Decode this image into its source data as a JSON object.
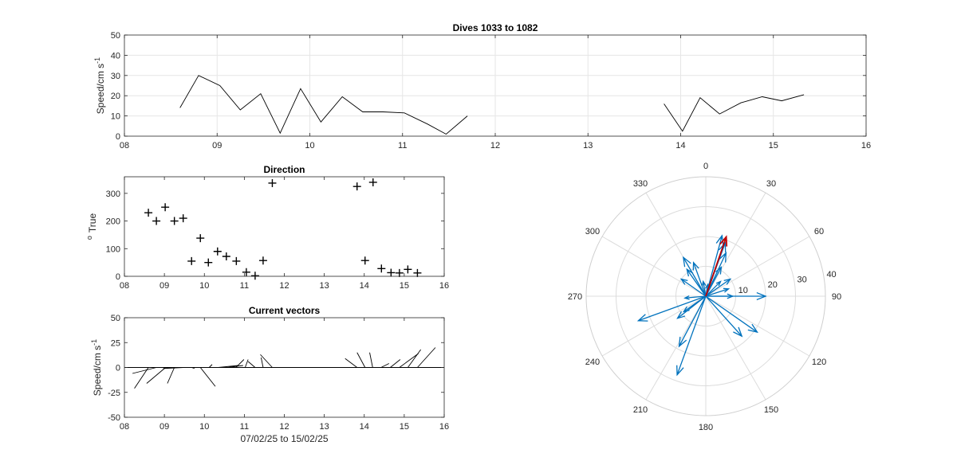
{
  "chart_data": [
    {
      "type": "line",
      "title": "Dives 1033 to 1082",
      "xlabel": "",
      "ylabel_main": "Speed/cm s",
      "ylabel_sup": "-1",
      "xlim": [
        8,
        16
      ],
      "ylim": [
        0,
        50
      ],
      "xticks": [
        8,
        9,
        10,
        11,
        12,
        13,
        14,
        15,
        16
      ],
      "xticklabels": [
        "08",
        "09",
        "10",
        "11",
        "12",
        "13",
        "14",
        "15",
        "16"
      ],
      "yticks": [
        0,
        10,
        20,
        30,
        40,
        50
      ],
      "yticklabels": [
        "0",
        "10",
        "20",
        "30",
        "40",
        "50"
      ],
      "grid": true,
      "color": "#000000",
      "segments": [
        [
          [
            8.6,
            14
          ],
          [
            8.8,
            30
          ],
          [
            9.03,
            25
          ],
          [
            9.25,
            13
          ],
          [
            9.47,
            21
          ],
          [
            9.68,
            1.5
          ],
          [
            9.9,
            23.5
          ],
          [
            10.12,
            7
          ],
          [
            10.35,
            19.5
          ],
          [
            10.57,
            12
          ],
          [
            10.79,
            12
          ],
          [
            11.02,
            11.5
          ],
          [
            11.27,
            6
          ],
          [
            11.47,
            1
          ],
          [
            11.7,
            10
          ]
        ],
        [
          [
            13.82,
            16
          ],
          [
            14.02,
            2.5
          ],
          [
            14.21,
            19
          ],
          [
            14.42,
            11
          ],
          [
            14.65,
            16.5
          ],
          [
            14.88,
            19.5
          ],
          [
            15.09,
            17.5
          ],
          [
            15.33,
            20.5
          ]
        ]
      ]
    },
    {
      "type": "scatter",
      "title": "Direction",
      "xlabel": "",
      "ylabel_main": "True",
      "ylabel_sup": "o",
      "marker": "+",
      "xlim": [
        8,
        16
      ],
      "ylim": [
        0,
        360
      ],
      "xticks": [
        8,
        9,
        10,
        11,
        12,
        13,
        14,
        15,
        16
      ],
      "xticklabels": [
        "08",
        "09",
        "10",
        "11",
        "12",
        "13",
        "14",
        "15",
        "16"
      ],
      "yticks": [
        0,
        100,
        200,
        300
      ],
      "yticklabels": [
        "0",
        "100",
        "200",
        "300"
      ],
      "grid": false,
      "points": [
        [
          8.6,
          230
        ],
        [
          8.8,
          200
        ],
        [
          9.02,
          250
        ],
        [
          9.25,
          200
        ],
        [
          9.47,
          210
        ],
        [
          9.68,
          55
        ],
        [
          9.9,
          138
        ],
        [
          10.1,
          50
        ],
        [
          10.33,
          90
        ],
        [
          10.55,
          72
        ],
        [
          10.8,
          55
        ],
        [
          11.05,
          15
        ],
        [
          11.27,
          2
        ],
        [
          11.47,
          57
        ],
        [
          11.7,
          337
        ],
        [
          13.82,
          325
        ],
        [
          14.02,
          57
        ],
        [
          14.22,
          340
        ],
        [
          14.43,
          28
        ],
        [
          14.67,
          13
        ],
        [
          14.88,
          12
        ],
        [
          15.09,
          25
        ],
        [
          15.33,
          12
        ]
      ]
    },
    {
      "type": "vector",
      "title": "Current vectors",
      "xlabel": "07/02/25 to 15/02/25",
      "ylabel_main": "Speed/cm s",
      "ylabel_sup": "-1",
      "xlim": [
        8,
        16
      ],
      "ylim": [
        -50,
        50
      ],
      "xticks": [
        8,
        9,
        10,
        11,
        12,
        13,
        14,
        15,
        16
      ],
      "xticklabels": [
        "08",
        "09",
        "10",
        "11",
        "12",
        "13",
        "14",
        "15",
        "16"
      ],
      "yticks": [
        -50,
        -25,
        0,
        25,
        50
      ],
      "yticklabels": [
        "-50",
        "-25",
        "0",
        "25",
        "50"
      ],
      "grid": false,
      "vectors": [
        [
          8.6,
          -14,
          -21
        ],
        [
          8.8,
          -24,
          -6
        ],
        [
          9.03,
          -19,
          -16
        ],
        [
          9.25,
          -7,
          -16
        ],
        [
          9.47,
          -20,
          -1
        ],
        [
          9.68,
          3,
          -1
        ],
        [
          9.9,
          15,
          -19
        ],
        [
          10.12,
          3,
          3
        ],
        [
          10.35,
          20,
          2
        ],
        [
          10.57,
          16,
          2
        ],
        [
          10.79,
          8,
          8
        ],
        [
          11.02,
          3,
          8
        ],
        [
          11.27,
          -7,
          6
        ],
        [
          11.47,
          -2,
          10
        ],
        [
          11.7,
          -12,
          13
        ],
        [
          13.82,
          -12,
          9
        ],
        [
          14.02,
          -8,
          15
        ],
        [
          14.21,
          -3,
          15
        ],
        [
          14.42,
          8,
          4
        ],
        [
          14.65,
          10,
          8
        ],
        [
          14.88,
          19,
          14
        ],
        [
          15.09,
          13,
          18
        ],
        [
          15.33,
          18,
          20
        ]
      ]
    },
    {
      "type": "polar",
      "title": "",
      "theta_direction": "clockwise",
      "theta_zero": "north",
      "angle_ticks": [
        0,
        30,
        60,
        90,
        120,
        150,
        180,
        210,
        240,
        270,
        300,
        330
      ],
      "angle_labels": [
        "0",
        "30",
        "60",
        "90",
        "120",
        "150",
        "180",
        "210",
        "240",
        "270",
        "300",
        "330"
      ],
      "rlim": [
        0,
        40
      ],
      "rticks": [
        10,
        20,
        30,
        40
      ],
      "rticklabels": [
        "10",
        "20",
        "30",
        "40"
      ],
      "grid": true,
      "vector_color": "#0072BD",
      "highlight_color": "#C00000",
      "vectors": [
        {
          "dir": 90,
          "speed": 20
        },
        {
          "dir": 125,
          "speed": 21
        },
        {
          "dir": 200,
          "speed": 28
        },
        {
          "dir": 208,
          "speed": 19
        },
        {
          "dir": 250,
          "speed": 24
        },
        {
          "dir": 232,
          "speed": 12
        },
        {
          "dir": 138,
          "speed": 18
        },
        {
          "dir": 55,
          "speed": 10
        },
        {
          "dir": 330,
          "speed": 15
        },
        {
          "dir": 305,
          "speed": 10
        },
        {
          "dir": 72,
          "speed": 8
        },
        {
          "dir": 90,
          "speed": 9
        },
        {
          "dir": 15,
          "speed": 21
        },
        {
          "dir": 20,
          "speed": 19
        },
        {
          "dir": 25,
          "speed": 16
        },
        {
          "dir": 340,
          "speed": 12
        },
        {
          "dir": 325,
          "speed": 11
        },
        {
          "dir": 235,
          "speed": 9
        },
        {
          "dir": 265,
          "speed": 7
        },
        {
          "dir": 28,
          "speed": 11
        },
        {
          "dir": 45,
          "speed": 7
        },
        {
          "dir": 350,
          "speed": 5
        },
        {
          "dir": 10,
          "speed": 4
        }
      ],
      "highlight": {
        "dir": 19,
        "speed": 21
      }
    }
  ]
}
